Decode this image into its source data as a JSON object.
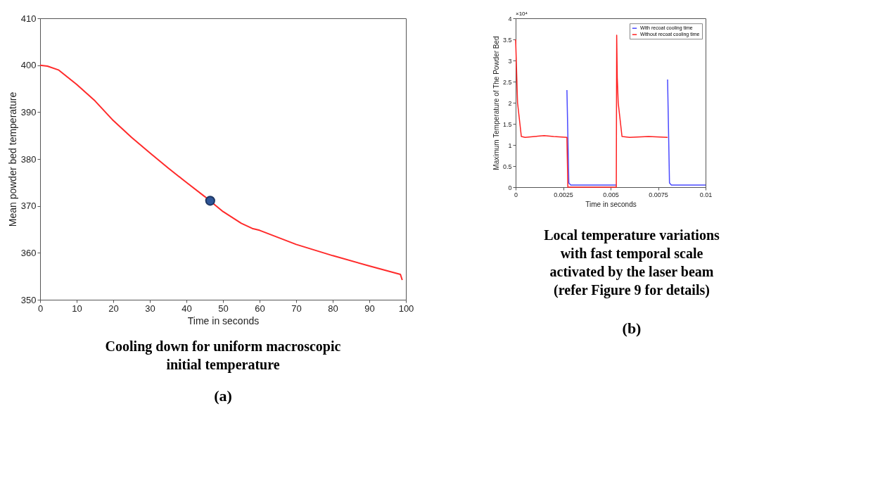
{
  "chart_data": [
    {
      "type": "line",
      "xlabel": "Time in seconds",
      "ylabel": "Mean powder bed temperature",
      "xlim": [
        0,
        100
      ],
      "xticks": [
        0,
        10,
        20,
        30,
        40,
        50,
        60,
        70,
        80,
        90,
        100
      ],
      "ylim": [
        350,
        410
      ],
      "yticks": [
        350,
        360,
        370,
        380,
        390,
        400,
        410
      ],
      "grid": false,
      "marker": "none",
      "series": [
        {
          "color": "#ff2a2a",
          "x": [
            0,
            2,
            5,
            10,
            15,
            20,
            25,
            30,
            35,
            40,
            45,
            50,
            55,
            58,
            60,
            70,
            80,
            90,
            98.5,
            99
          ],
          "values": [
            400,
            399.8,
            399,
            395.9,
            392.4,
            388.2,
            384.6,
            381.3,
            378.1,
            375,
            372,
            368.8,
            366.3,
            365.2,
            364.8,
            361.8,
            359.4,
            357.2,
            355.4,
            354.2
          ]
        },
        {
          "type": "scatter",
          "marker": "circle",
          "color": "#2f5597",
          "x": [
            46.5
          ],
          "values": [
            371.1
          ]
        }
      ],
      "annotations": [
        "Cooling down for uniform macroscopic initial temperature",
        "(a)"
      ]
    },
    {
      "type": "line",
      "xlabel": "Time in seconds",
      "ylabel": "Maximum Temperature of The Powder Bed",
      "xlim": [
        0,
        0.01
      ],
      "xticks": [
        0,
        0.0025,
        0.005,
        0.0075,
        0.01
      ],
      "ylim": [
        0,
        4
      ],
      "yticks": [
        0,
        0.5,
        1,
        1.5,
        2,
        2.5,
        3,
        3.5,
        4
      ],
      "grid": false,
      "legend": "top right",
      "series": [
        {
          "name": "With recoat cooling time",
          "color": "#4a4aff",
          "x": [
            0.0027,
            0.0028,
            0.0029,
            0.0053,
            0.0054,
            0.008,
            0.0081,
            0.0082,
            0.01
          ],
          "values": [
            2.3,
            0.1,
            0.05,
            0.05,
            null,
            2.55,
            0.1,
            0.05,
            0.05
          ]
        },
        {
          "name": "Without recoat cooling time",
          "color": "#ff2020",
          "x": [
            0,
            0.0001,
            0.0003,
            0.0005,
            0.001,
            0.0015,
            0.002,
            0.0027,
            0.00275,
            0.0053,
            0.00532,
            0.00535,
            0.0054,
            0.0056,
            0.006,
            0.007,
            0.008
          ],
          "values": [
            3.5,
            2.0,
            1.2,
            1.18,
            1.2,
            1.22,
            1.2,
            1.18,
            0,
            0,
            3.6,
            2.6,
            2.0,
            1.2,
            1.18,
            1.2,
            1.18
          ]
        }
      ],
      "annotations": [
        "×10⁴",
        "Local temperature variations with fast temporal scale activated by the laser beam (refer Figure 9 for details)",
        "(b)"
      ]
    }
  ]
}
